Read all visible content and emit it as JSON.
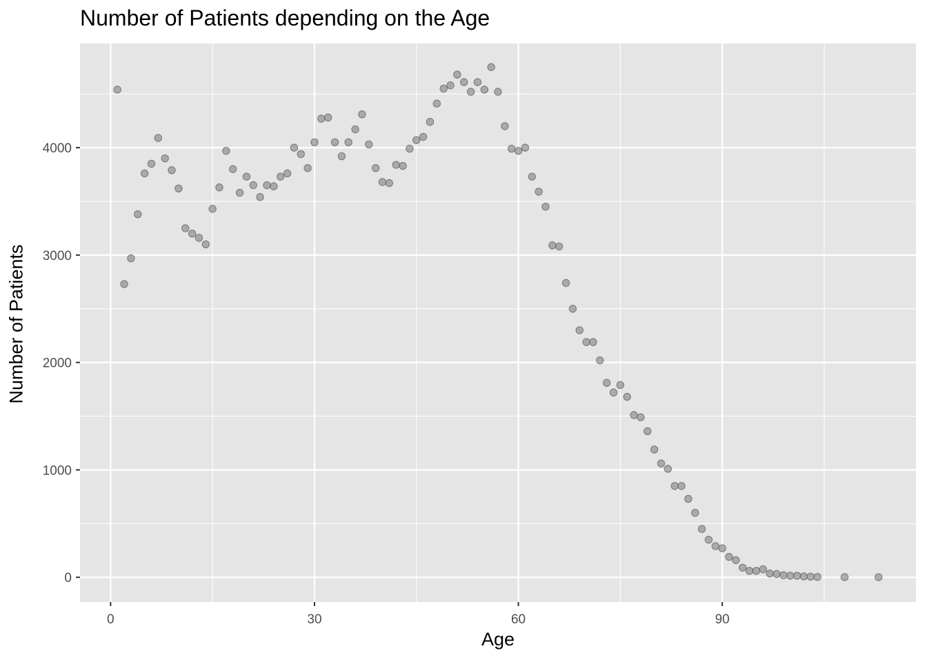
{
  "chart_data": {
    "type": "scatter",
    "title": "Number of Patients depending on the Age",
    "xlabel": "Age",
    "ylabel": "Number of Patients",
    "xlim": [
      -4.5,
      118.5
    ],
    "ylim": [
      -230,
      4970
    ],
    "x_ticks": [
      0,
      30,
      60,
      90
    ],
    "y_ticks": [
      0,
      1000,
      2000,
      3000,
      4000
    ],
    "grid": true,
    "panel_background": "#e5e5e5",
    "point_color": "#808080",
    "points": [
      {
        "x": 1,
        "y": 4540
      },
      {
        "x": 2,
        "y": 2730
      },
      {
        "x": 3,
        "y": 2970
      },
      {
        "x": 4,
        "y": 3380
      },
      {
        "x": 5,
        "y": 3760
      },
      {
        "x": 6,
        "y": 3850
      },
      {
        "x": 7,
        "y": 4090
      },
      {
        "x": 8,
        "y": 3900
      },
      {
        "x": 9,
        "y": 3790
      },
      {
        "x": 10,
        "y": 3620
      },
      {
        "x": 11,
        "y": 3250
      },
      {
        "x": 12,
        "y": 3200
      },
      {
        "x": 13,
        "y": 3160
      },
      {
        "x": 14,
        "y": 3100
      },
      {
        "x": 15,
        "y": 3430
      },
      {
        "x": 16,
        "y": 3630
      },
      {
        "x": 17,
        "y": 3970
      },
      {
        "x": 18,
        "y": 3800
      },
      {
        "x": 19,
        "y": 3580
      },
      {
        "x": 20,
        "y": 3730
      },
      {
        "x": 21,
        "y": 3650
      },
      {
        "x": 22,
        "y": 3540
      },
      {
        "x": 23,
        "y": 3650
      },
      {
        "x": 24,
        "y": 3640
      },
      {
        "x": 25,
        "y": 3730
      },
      {
        "x": 26,
        "y": 3760
      },
      {
        "x": 27,
        "y": 4000
      },
      {
        "x": 28,
        "y": 3940
      },
      {
        "x": 29,
        "y": 3810
      },
      {
        "x": 30,
        "y": 4050
      },
      {
        "x": 31,
        "y": 4270
      },
      {
        "x": 32,
        "y": 4280
      },
      {
        "x": 33,
        "y": 4050
      },
      {
        "x": 34,
        "y": 3920
      },
      {
        "x": 35,
        "y": 4050
      },
      {
        "x": 36,
        "y": 4170
      },
      {
        "x": 37,
        "y": 4310
      },
      {
        "x": 38,
        "y": 4030
      },
      {
        "x": 39,
        "y": 3810
      },
      {
        "x": 40,
        "y": 3680
      },
      {
        "x": 41,
        "y": 3670
      },
      {
        "x": 42,
        "y": 3840
      },
      {
        "x": 43,
        "y": 3830
      },
      {
        "x": 44,
        "y": 3990
      },
      {
        "x": 45,
        "y": 4070
      },
      {
        "x": 46,
        "y": 4100
      },
      {
        "x": 47,
        "y": 4240
      },
      {
        "x": 48,
        "y": 4410
      },
      {
        "x": 49,
        "y": 4550
      },
      {
        "x": 50,
        "y": 4580
      },
      {
        "x": 51,
        "y": 4680
      },
      {
        "x": 52,
        "y": 4610
      },
      {
        "x": 53,
        "y": 4520
      },
      {
        "x": 54,
        "y": 4610
      },
      {
        "x": 55,
        "y": 4540
      },
      {
        "x": 56,
        "y": 4750
      },
      {
        "x": 57,
        "y": 4520
      },
      {
        "x": 58,
        "y": 4200
      },
      {
        "x": 59,
        "y": 3990
      },
      {
        "x": 60,
        "y": 3970
      },
      {
        "x": 61,
        "y": 4000
      },
      {
        "x": 62,
        "y": 3730
      },
      {
        "x": 63,
        "y": 3590
      },
      {
        "x": 64,
        "y": 3450
      },
      {
        "x": 65,
        "y": 3090
      },
      {
        "x": 66,
        "y": 3080
      },
      {
        "x": 67,
        "y": 2740
      },
      {
        "x": 68,
        "y": 2500
      },
      {
        "x": 69,
        "y": 2300
      },
      {
        "x": 70,
        "y": 2190
      },
      {
        "x": 71,
        "y": 2190
      },
      {
        "x": 72,
        "y": 2020
      },
      {
        "x": 73,
        "y": 1810
      },
      {
        "x": 74,
        "y": 1720
      },
      {
        "x": 75,
        "y": 1790
      },
      {
        "x": 76,
        "y": 1680
      },
      {
        "x": 77,
        "y": 1510
      },
      {
        "x": 78,
        "y": 1490
      },
      {
        "x": 79,
        "y": 1360
      },
      {
        "x": 80,
        "y": 1190
      },
      {
        "x": 81,
        "y": 1060
      },
      {
        "x": 82,
        "y": 1010
      },
      {
        "x": 83,
        "y": 850
      },
      {
        "x": 84,
        "y": 850
      },
      {
        "x": 85,
        "y": 730
      },
      {
        "x": 86,
        "y": 600
      },
      {
        "x": 87,
        "y": 450
      },
      {
        "x": 88,
        "y": 350
      },
      {
        "x": 89,
        "y": 290
      },
      {
        "x": 90,
        "y": 270
      },
      {
        "x": 91,
        "y": 190
      },
      {
        "x": 92,
        "y": 160
      },
      {
        "x": 93,
        "y": 90
      },
      {
        "x": 94,
        "y": 60
      },
      {
        "x": 95,
        "y": 60
      },
      {
        "x": 96,
        "y": 75
      },
      {
        "x": 97,
        "y": 35
      },
      {
        "x": 98,
        "y": 30
      },
      {
        "x": 99,
        "y": 20
      },
      {
        "x": 100,
        "y": 15
      },
      {
        "x": 101,
        "y": 15
      },
      {
        "x": 102,
        "y": 8
      },
      {
        "x": 103,
        "y": 6
      },
      {
        "x": 104,
        "y": 4
      },
      {
        "x": 108,
        "y": 2
      },
      {
        "x": 113,
        "y": 1
      }
    ]
  }
}
